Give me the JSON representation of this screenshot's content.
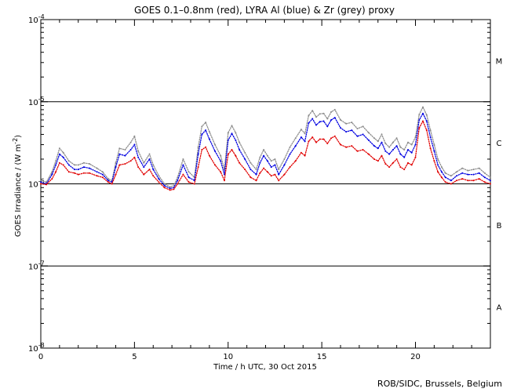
{
  "chart_data": {
    "type": "line",
    "title": "GOES 0.1–0.8nm (red), LYRA Al (blue) & Zr (grey) proxy",
    "xlabel": "Time / h UTC, 30 Oct 2015",
    "ylabel": "GOES Irradiance / (W m",
    "ylabel_exp": "-2",
    "ylabel_end": ")",
    "xlim": [
      0,
      24
    ],
    "ylim": [
      1e-08,
      0.0001
    ],
    "yscale": "log",
    "x_ticks": [
      {
        "value": 0,
        "label": "0"
      },
      {
        "value": 5,
        "label": "5"
      },
      {
        "value": 10,
        "label": "10"
      },
      {
        "value": 15,
        "label": "15"
      },
      {
        "value": 20,
        "label": "20"
      }
    ],
    "y_ticks": [
      {
        "exp": -8,
        "base": "10",
        "sup": "-8"
      },
      {
        "exp": -7,
        "base": "10",
        "sup": "-7"
      },
      {
        "exp": -6,
        "base": "10",
        "sup": "-6"
      },
      {
        "exp": -5,
        "base": "10",
        "sup": "-5"
      },
      {
        "exp": -4,
        "base": "10",
        "sup": "-4"
      }
    ],
    "flare_class_lines": [
      -7,
      -6,
      -5
    ],
    "flare_classes": [
      {
        "label": "A",
        "exp": -7.5
      },
      {
        "label": "B",
        "exp": -6.5
      },
      {
        "label": "C",
        "exp": -5.5
      },
      {
        "label": "M",
        "exp": -4.5
      }
    ],
    "series": [
      {
        "name": "GOES 0.1–0.8nm",
        "color": "#e00000",
        "x": [
          0,
          0.3,
          0.6,
          0.8,
          1.0,
          1.2,
          1.5,
          1.8,
          2.0,
          2.3,
          2.6,
          3.0,
          3.3,
          3.6,
          3.8,
          4.0,
          4.2,
          4.5,
          4.8,
          5.0,
          5.2,
          5.5,
          5.8,
          6.0,
          6.3,
          6.6,
          6.9,
          7.1,
          7.3,
          7.6,
          7.9,
          8.2,
          8.4,
          8.6,
          8.8,
          9.0,
          9.3,
          9.6,
          9.8,
          10.0,
          10.2,
          10.4,
          10.6,
          10.9,
          11.2,
          11.5,
          11.7,
          11.9,
          12.1,
          12.3,
          12.5,
          12.7,
          13.0,
          13.3,
          13.6,
          13.9,
          14.1,
          14.3,
          14.5,
          14.7,
          14.9,
          15.1,
          15.3,
          15.5,
          15.7,
          16.0,
          16.3,
          16.6,
          16.9,
          17.2,
          17.5,
          17.8,
          18.0,
          18.2,
          18.4,
          18.6,
          18.8,
          19.0,
          19.2,
          19.4,
          19.6,
          19.8,
          20.0,
          20.2,
          20.4,
          20.6,
          20.8,
          21.0,
          21.2,
          21.4,
          21.6,
          21.9,
          22.2,
          22.5,
          22.8,
          23.1,
          23.4,
          23.7,
          24.0
        ],
        "y": [
          1e-06,
          9.8e-07,
          1.15e-06,
          1.4e-06,
          1.8e-06,
          1.7e-06,
          1.4e-06,
          1.35e-06,
          1.3e-06,
          1.35e-06,
          1.35e-06,
          1.25e-06,
          1.2e-06,
          1.05e-06,
          1e-06,
          1.3e-06,
          1.7e-06,
          1.75e-06,
          1.9e-06,
          2.1e-06,
          1.6e-06,
          1.3e-06,
          1.5e-06,
          1.25e-06,
          1.05e-06,
          9e-07,
          8.4e-07,
          8.6e-07,
          1e-06,
          1.3e-06,
          1.05e-06,
          1e-06,
          1.6e-06,
          2.6e-06,
          2.8e-06,
          2.2e-06,
          1.7e-06,
          1.4e-06,
          1.1e-06,
          2.3e-06,
          2.6e-06,
          2.2e-06,
          1.8e-06,
          1.5e-06,
          1.2e-06,
          1.1e-06,
          1.35e-06,
          1.55e-06,
          1.4e-06,
          1.25e-06,
          1.3e-06,
          1.1e-06,
          1.3e-06,
          1.6e-06,
          1.9e-06,
          2.4e-06,
          2.2e-06,
          3.3e-06,
          3.7e-06,
          3.2e-06,
          3.5e-06,
          3.5e-06,
          3.1e-06,
          3.6e-06,
          3.8e-06,
          3e-06,
          2.8e-06,
          2.9e-06,
          2.5e-06,
          2.6e-06,
          2.3e-06,
          2e-06,
          1.9e-06,
          2.2e-06,
          1.75e-06,
          1.6e-06,
          1.8e-06,
          2e-06,
          1.6e-06,
          1.5e-06,
          1.8e-06,
          1.7e-06,
          2.1e-06,
          4.8e-06,
          5.8e-06,
          4.5e-06,
          2.7e-06,
          1.9e-06,
          1.4e-06,
          1.2e-06,
          1.05e-06,
          1e-06,
          1.1e-06,
          1.15e-06,
          1.1e-06,
          1.1e-06,
          1.15e-06,
          1.05e-06,
          1e-06
        ]
      },
      {
        "name": "LYRA Al proxy",
        "color": "#0000e0",
        "x": [
          0,
          0.3,
          0.6,
          0.8,
          1.0,
          1.2,
          1.5,
          1.8,
          2.0,
          2.3,
          2.6,
          3.0,
          3.3,
          3.6,
          3.8,
          4.0,
          4.2,
          4.5,
          4.8,
          5.0,
          5.2,
          5.5,
          5.8,
          6.0,
          6.3,
          6.6,
          6.9,
          7.1,
          7.3,
          7.6,
          7.9,
          8.2,
          8.4,
          8.6,
          8.8,
          9.0,
          9.3,
          9.6,
          9.8,
          10.0,
          10.2,
          10.4,
          10.6,
          10.9,
          11.2,
          11.5,
          11.7,
          11.9,
          12.1,
          12.3,
          12.5,
          12.7,
          13.0,
          13.3,
          13.6,
          13.9,
          14.1,
          14.3,
          14.5,
          14.7,
          14.9,
          15.1,
          15.3,
          15.5,
          15.7,
          16.0,
          16.3,
          16.6,
          16.9,
          17.2,
          17.5,
          17.8,
          18.0,
          18.2,
          18.4,
          18.6,
          18.8,
          19.0,
          19.2,
          19.4,
          19.6,
          19.8,
          20.0,
          20.2,
          20.4,
          20.6,
          20.8,
          21.0,
          21.2,
          21.4,
          21.6,
          21.9,
          22.2,
          22.5,
          22.8,
          23.1,
          23.4,
          23.7,
          24.0
        ],
        "y": [
          1.05e-06,
          1e-06,
          1.3e-06,
          1.7e-06,
          2.3e-06,
          2.1e-06,
          1.7e-06,
          1.5e-06,
          1.5e-06,
          1.6e-06,
          1.55e-06,
          1.4e-06,
          1.3e-06,
          1.1e-06,
          1.05e-06,
          1.6e-06,
          2.3e-06,
          2.2e-06,
          2.6e-06,
          3e-06,
          2.1e-06,
          1.6e-06,
          2e-06,
          1.5e-06,
          1.15e-06,
          9.5e-07,
          8.8e-07,
          9e-07,
          1.1e-06,
          1.7e-06,
          1.2e-06,
          1.1e-06,
          2.3e-06,
          4e-06,
          4.5e-06,
          3.5e-06,
          2.5e-06,
          1.9e-06,
          1.3e-06,
          3.4e-06,
          4.1e-06,
          3.4e-06,
          2.6e-06,
          2e-06,
          1.5e-06,
          1.3e-06,
          1.8e-06,
          2.2e-06,
          1.9e-06,
          1.6e-06,
          1.7e-06,
          1.3e-06,
          1.7e-06,
          2.3e-06,
          2.9e-06,
          3.7e-06,
          3.3e-06,
          5.5e-06,
          6.2e-06,
          5.2e-06,
          5.7e-06,
          5.8e-06,
          5e-06,
          6e-06,
          6.4e-06,
          4.8e-06,
          4.3e-06,
          4.5e-06,
          3.8e-06,
          4e-06,
          3.4e-06,
          2.9e-06,
          2.7e-06,
          3.2e-06,
          2.5e-06,
          2.3e-06,
          2.6e-06,
          2.9e-06,
          2.3e-06,
          2.1e-06,
          2.6e-06,
          2.4e-06,
          3e-06,
          6e-06,
          7.2e-06,
          5.8e-06,
          3.7e-06,
          2.5e-06,
          1.7e-06,
          1.4e-06,
          1.2e-06,
          1.1e-06,
          1.25e-06,
          1.35e-06,
          1.3e-06,
          1.3e-06,
          1.35e-06,
          1.2e-06,
          1.1e-06
        ]
      },
      {
        "name": "LYRA Zr proxy",
        "color": "#8c8c8c",
        "x": [
          0,
          0.3,
          0.6,
          0.8,
          1.0,
          1.2,
          1.5,
          1.8,
          2.0,
          2.3,
          2.6,
          3.0,
          3.3,
          3.6,
          3.8,
          4.0,
          4.2,
          4.5,
          4.8,
          5.0,
          5.2,
          5.5,
          5.8,
          6.0,
          6.3,
          6.6,
          6.9,
          7.1,
          7.3,
          7.6,
          7.9,
          8.2,
          8.4,
          8.6,
          8.8,
          9.0,
          9.3,
          9.6,
          9.8,
          10.0,
          10.2,
          10.4,
          10.6,
          10.9,
          11.2,
          11.5,
          11.7,
          11.9,
          12.1,
          12.3,
          12.5,
          12.7,
          13.0,
          13.3,
          13.6,
          13.9,
          14.1,
          14.3,
          14.5,
          14.7,
          14.9,
          15.1,
          15.3,
          15.5,
          15.7,
          16.0,
          16.3,
          16.6,
          16.9,
          17.2,
          17.5,
          17.8,
          18.0,
          18.2,
          18.4,
          18.6,
          18.8,
          19.0,
          19.2,
          19.4,
          19.6,
          19.8,
          20.0,
          20.2,
          20.4,
          20.6,
          20.8,
          21.0,
          21.2,
          21.4,
          21.6,
          21.9,
          22.2,
          22.5,
          22.8,
          23.1,
          23.4,
          23.7,
          24.0
        ],
        "y": [
          1.1e-06,
          1.05e-06,
          1.4e-06,
          1.9e-06,
          2.7e-06,
          2.4e-06,
          1.9e-06,
          1.7e-06,
          1.7e-06,
          1.8e-06,
          1.75e-06,
          1.55e-06,
          1.4e-06,
          1.15e-06,
          1.1e-06,
          1.8e-06,
          2.7e-06,
          2.6e-06,
          3.2e-06,
          3.8e-06,
          2.5e-06,
          1.8e-06,
          2.3e-06,
          1.7e-06,
          1.25e-06,
          1e-06,
          9.2e-07,
          9.5e-07,
          1.2e-06,
          2e-06,
          1.4e-06,
          1.2e-06,
          2.8e-06,
          5e-06,
          5.6e-06,
          4.3e-06,
          3e-06,
          2.2e-06,
          1.5e-06,
          4.2e-06,
          5.1e-06,
          4.2e-06,
          3.2e-06,
          2.4e-06,
          1.8e-06,
          1.5e-06,
          2.1e-06,
          2.6e-06,
          2.2e-06,
          1.9e-06,
          2e-06,
          1.5e-06,
          2e-06,
          2.8e-06,
          3.6e-06,
          4.6e-06,
          4.1e-06,
          6.8e-06,
          7.8e-06,
          6.5e-06,
          7.1e-06,
          7.2e-06,
          6.2e-06,
          7.5e-06,
          8e-06,
          6e-06,
          5.4e-06,
          5.6e-06,
          4.7e-06,
          5e-06,
          4.2e-06,
          3.6e-06,
          3.3e-06,
          4e-06,
          3.1e-06,
          2.8e-06,
          3.2e-06,
          3.6e-06,
          2.8e-06,
          2.6e-06,
          3.2e-06,
          3e-06,
          3.7e-06,
          7e-06,
          8.6e-06,
          6.9e-06,
          4.5e-06,
          3e-06,
          2e-06,
          1.6e-06,
          1.35e-06,
          1.25e-06,
          1.4e-06,
          1.55e-06,
          1.45e-06,
          1.5e-06,
          1.55e-06,
          1.35e-06,
          1.2e-06
        ]
      }
    ]
  },
  "footer": {
    "credit": "ROB/SIDC, Brussels, Belgium"
  }
}
